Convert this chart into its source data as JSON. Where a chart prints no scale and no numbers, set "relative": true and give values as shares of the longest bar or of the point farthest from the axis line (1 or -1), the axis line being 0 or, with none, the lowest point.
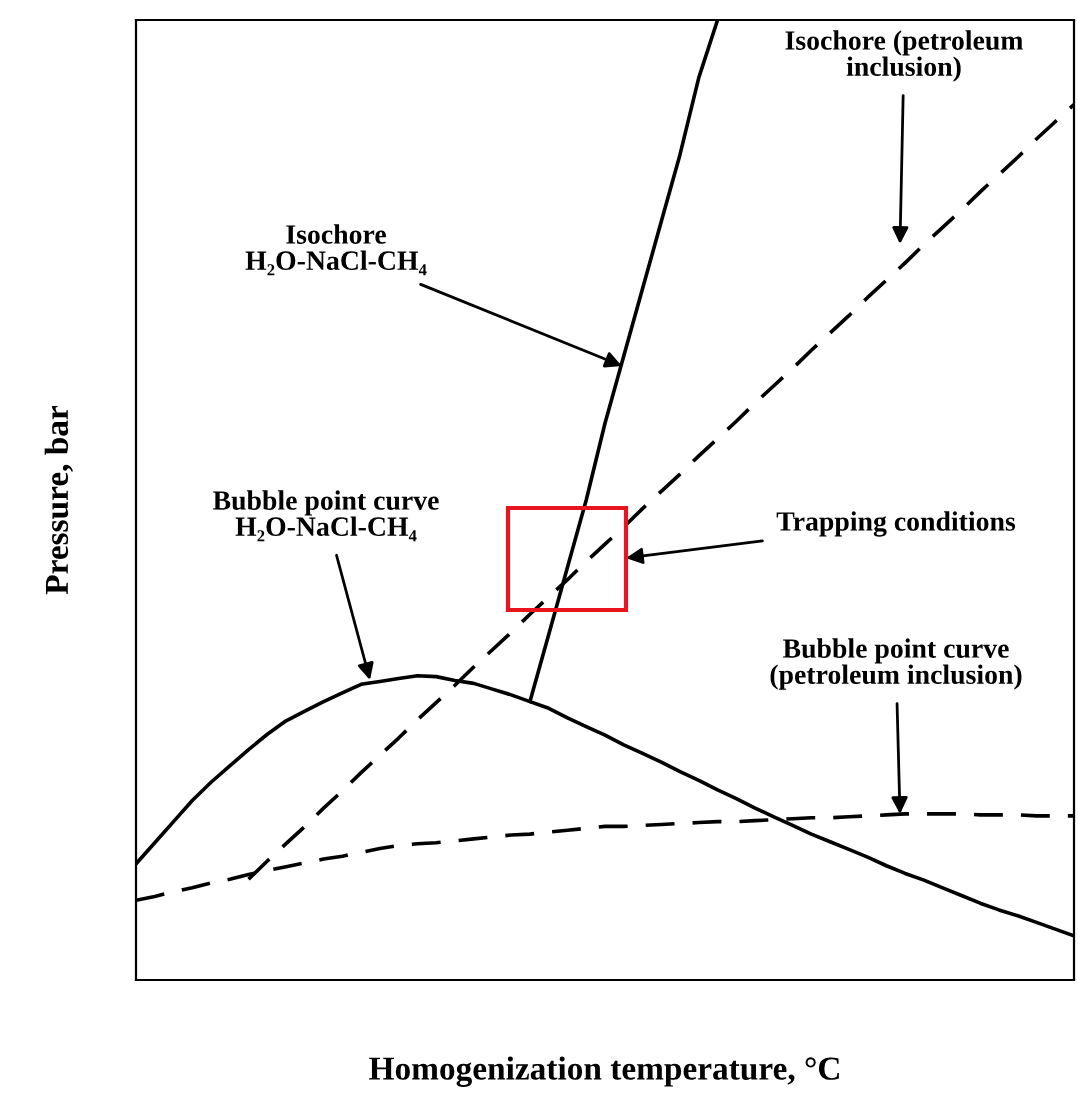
{
  "chart_data": {
    "type": "line",
    "relative": true,
    "xlabel": "Homogenization temperature, °C",
    "ylabel": "Pressure, bar",
    "categories": [
      null,
      null,
      null,
      null,
      null,
      null,
      null,
      null,
      null,
      null,
      null,
      null,
      null,
      null,
      null,
      null,
      null,
      null,
      null,
      null,
      null,
      null,
      null,
      null,
      null,
      null,
      null,
      null,
      null,
      null,
      null,
      null,
      null,
      null,
      null,
      null,
      null,
      null,
      null,
      null,
      null,
      null,
      null,
      null,
      null,
      null,
      null,
      null,
      null,
      null,
      null
    ],
    "series": [
      {
        "color": "#000000",
        "line_style": "solid",
        "values": [
          null,
          null,
          null,
          null,
          null,
          null,
          null,
          null,
          null,
          null,
          null,
          null,
          null,
          null,
          null,
          null,
          null,
          null,
          null,
          null,
          null,
          0.29,
          0.36,
          0.43,
          0.5,
          0.58,
          0.65,
          0.72,
          0.79,
          0.86,
          0.94,
          1.0,
          null,
          null,
          null,
          null,
          null,
          null,
          null,
          null,
          null,
          null,
          null,
          null,
          null,
          null,
          null,
          null,
          null,
          null,
          null
        ]
      },
      {
        "color": "#000000",
        "line_style": "dashed",
        "values": [
          null,
          null,
          null,
          null,
          null,
          null,
          0.105,
          0.124,
          0.142,
          0.16,
          0.179,
          0.197,
          0.216,
          0.234,
          0.252,
          0.271,
          0.289,
          0.307,
          0.326,
          0.344,
          0.362,
          0.381,
          0.399,
          0.417,
          0.436,
          0.454,
          0.472,
          0.491,
          0.509,
          0.527,
          0.546,
          0.564,
          0.582,
          0.601,
          0.619,
          0.637,
          0.656,
          0.674,
          0.692,
          0.711,
          0.729,
          0.747,
          0.766,
          0.784,
          0.802,
          0.821,
          0.839,
          0.857,
          0.876,
          0.894,
          0.912
        ]
      },
      {
        "color": "#000000",
        "line_style": "solid",
        "values": [
          0.121,
          0.143,
          0.165,
          0.187,
          0.206,
          0.223,
          0.24,
          0.256,
          0.27,
          0.28,
          0.29,
          0.299,
          0.308,
          0.311,
          0.314,
          0.317,
          0.316,
          0.312,
          0.309,
          0.303,
          0.297,
          0.29,
          0.283,
          0.273,
          0.264,
          0.255,
          0.245,
          0.236,
          0.227,
          0.217,
          0.208,
          0.198,
          0.189,
          0.179,
          0.17,
          0.161,
          0.152,
          0.144,
          0.136,
          0.128,
          0.119,
          0.111,
          0.104,
          0.096,
          0.088,
          0.08,
          0.073,
          0.067,
          0.06,
          0.053,
          0.046
        ]
      },
      {
        "color": "#000000",
        "line_style": "dashed",
        "values": [
          0.083,
          0.087,
          0.092,
          0.096,
          0.101,
          0.105,
          0.11,
          0.114,
          0.118,
          0.122,
          0.126,
          0.129,
          0.133,
          0.137,
          0.14,
          0.142,
          0.143,
          0.145,
          0.147,
          0.149,
          0.151,
          0.152,
          0.154,
          0.156,
          0.158,
          0.16,
          0.16,
          0.161,
          0.162,
          0.163,
          0.164,
          0.165,
          0.165,
          0.166,
          0.167,
          0.168,
          0.169,
          0.169,
          0.17,
          0.171,
          0.172,
          0.173,
          0.173,
          0.173,
          0.173,
          0.172,
          0.172,
          0.172,
          0.171,
          0.171,
          0.171
        ]
      }
    ],
    "annotations": [
      "Isochore\nH₂O-NaCl-CH₄",
      "Isochore (petroleum\ninclusion)",
      "Bubble point curve\nH₂O-NaCl-CH₄",
      "Bubble point curve\n(petroleum inclusion)",
      "Trapping conditions"
    ]
  }
}
